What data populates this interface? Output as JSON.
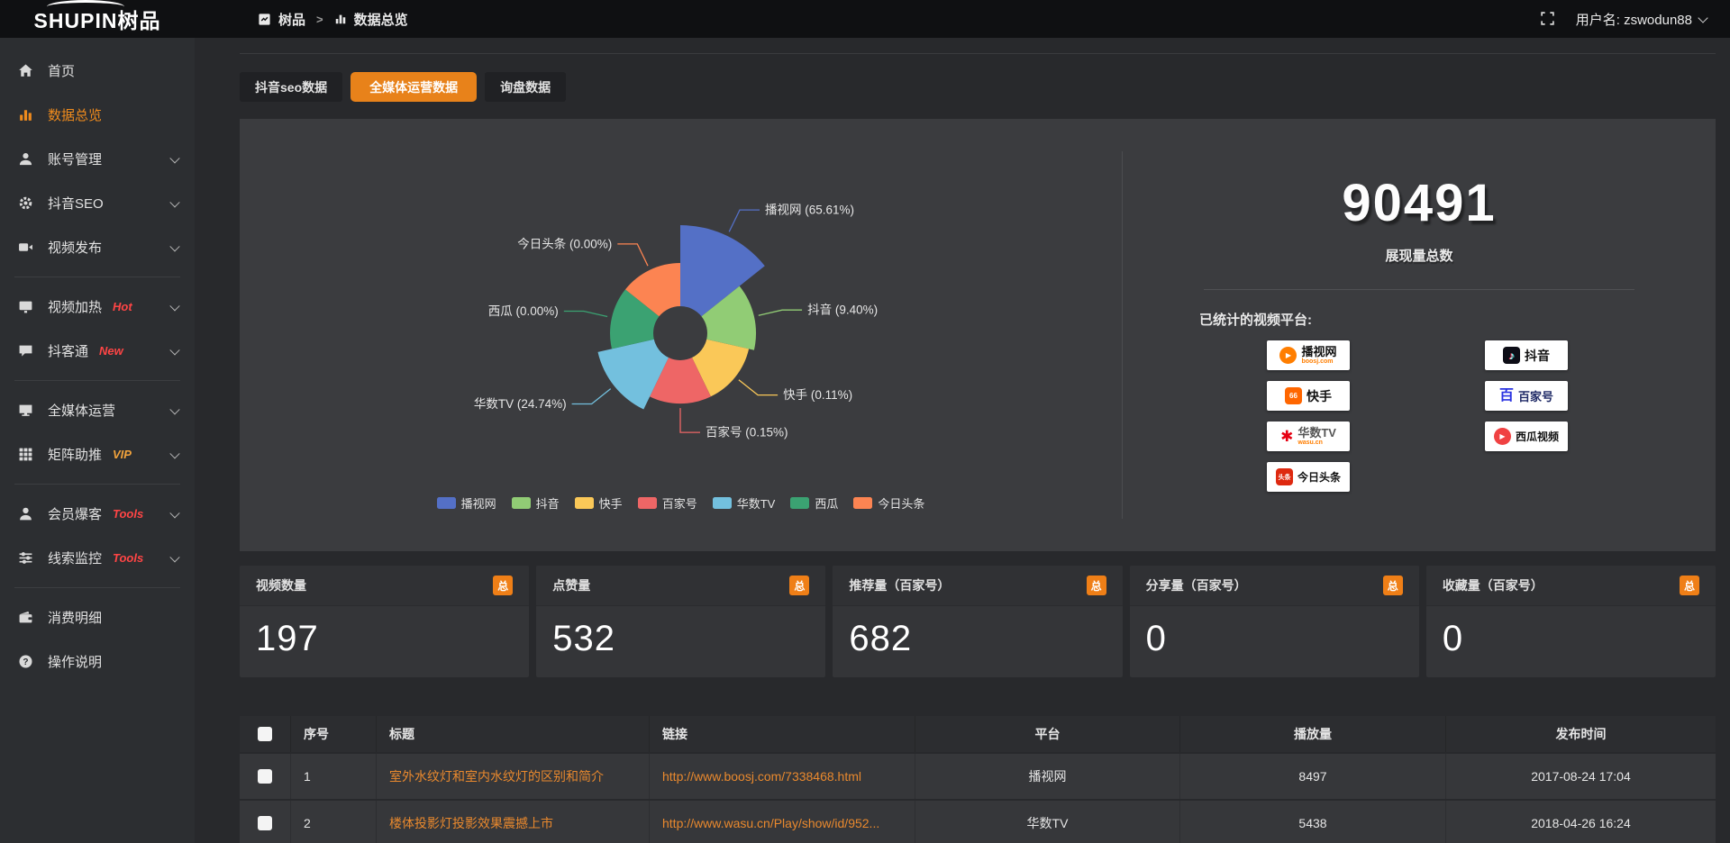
{
  "topbar": {
    "logo_text": "SHUPIN",
    "logo_suffix": "树品",
    "breadcrumb": {
      "root": "树品",
      "separator": ">",
      "current": "数据总览"
    },
    "username_label": "用户名: zswodun88"
  },
  "sidebar": {
    "items": [
      {
        "id": "home",
        "icon": "home-icon",
        "label": "首页"
      },
      {
        "id": "data-overview",
        "icon": "bar-chart-icon",
        "label": "数据总览",
        "active": true
      },
      {
        "id": "account-manage",
        "icon": "user-icon",
        "label": "账号管理",
        "chevron": true
      },
      {
        "id": "douyin-seo",
        "icon": "gear-icon",
        "label": "抖音SEO",
        "chevron": true
      },
      {
        "id": "video-publish",
        "icon": "video-icon",
        "label": "视频发布",
        "chevron": true
      },
      {
        "divider": true
      },
      {
        "id": "video-heat",
        "icon": "screen-icon",
        "label": "视频加热",
        "tag": "Hot",
        "tag_color": "#ff4545",
        "chevron": true
      },
      {
        "id": "douketong",
        "icon": "chat-icon",
        "label": "抖客通",
        "tag": "New",
        "tag_color": "#ff4545",
        "chevron": true
      },
      {
        "divider": true
      },
      {
        "id": "media-operation",
        "icon": "monitor-icon",
        "label": "全媒体运营",
        "chevron": true
      },
      {
        "id": "matrix-boost",
        "icon": "grid-icon",
        "label": "矩阵助推",
        "tag": "VIP",
        "tag_color": "#f2a33c",
        "chevron": true
      },
      {
        "divider": true
      },
      {
        "id": "member-baoke",
        "icon": "person-icon",
        "label": "会员爆客",
        "tag": "Tools",
        "tag_color": "#ff4545",
        "chevron": true
      },
      {
        "id": "clue-monitor",
        "icon": "sliders-icon",
        "label": "线索监控",
        "tag": "Tools",
        "tag_color": "#ff4545",
        "chevron": true
      },
      {
        "divider": true
      },
      {
        "id": "consumption-detail",
        "icon": "wallet-icon",
        "label": "消费明细"
      },
      {
        "id": "instructions",
        "icon": "help-icon",
        "label": "操作说明"
      }
    ]
  },
  "tabs": [
    {
      "label": "抖音seo数据",
      "active": false
    },
    {
      "label": "全媒体运营数据",
      "active": true
    },
    {
      "label": "询盘数据",
      "active": false
    }
  ],
  "chart_data": {
    "type": "pie",
    "style": "nightingale-rose",
    "items": [
      {
        "name": "播视网",
        "value": 65.61
      },
      {
        "name": "抖音",
        "value": 9.4
      },
      {
        "name": "快手",
        "value": 0.11
      },
      {
        "name": "百家号",
        "value": 0.15
      },
      {
        "name": "华数TV",
        "value": 24.74
      },
      {
        "name": "西瓜",
        "value": 0.0
      },
      {
        "name": "今日头条",
        "value": 0.0
      }
    ],
    "value_unit": "%",
    "label_format": "{name} ({value}%)",
    "legend": [
      "播视网",
      "抖音",
      "快手",
      "百家号",
      "华数TV",
      "西瓜",
      "今日头条"
    ],
    "colors": [
      "#5470c6",
      "#91cc75",
      "#fac858",
      "#ee6666",
      "#73c0de",
      "#3ba272",
      "#fc8452"
    ],
    "legend_position": "bottom"
  },
  "overview": {
    "total_value": "90491",
    "total_label": "展现量总数",
    "platforms_title": "已统计的视频平台:",
    "platform_columns": [
      [
        {
          "id": "boosj",
          "name": "播视网",
          "sub": "boosj.com"
        },
        {
          "id": "kuaishou",
          "name": "快手"
        },
        {
          "id": "wasu",
          "name": "华数TV",
          "sub": "wasu.cn"
        },
        {
          "id": "toutiao",
          "name": "今日头条"
        }
      ],
      [
        {
          "id": "douyin",
          "name": "抖音"
        },
        {
          "id": "baijiahao",
          "name": "百家号"
        },
        {
          "id": "xigua",
          "name": "西瓜视频"
        }
      ]
    ]
  },
  "stat_cards": [
    {
      "title": "视频数量",
      "badge": "总",
      "value": "197"
    },
    {
      "title": "点赞量",
      "badge": "总",
      "value": "532"
    },
    {
      "title": "推荐量（百家号）",
      "badge": "总",
      "value": "682"
    },
    {
      "title": "分享量（百家号）",
      "badge": "总",
      "value": "0"
    },
    {
      "title": "收藏量（百家号）",
      "badge": "总",
      "value": "0"
    }
  ],
  "table": {
    "headers": [
      "",
      "序号",
      "标题",
      "链接",
      "平台",
      "播放量",
      "发布时间"
    ],
    "rows": [
      {
        "index": "1",
        "title": "室外水纹灯和室内水纹灯的区别和简介",
        "link": "http://www.boosj.com/7338468.html",
        "platform": "播视网",
        "plays": "8497",
        "published": "2017-08-24 17:04"
      },
      {
        "index": "2",
        "title": "楼体投影灯投影效果震撼上市",
        "link": "http://www.wasu.cn/Play/show/id/952...",
        "platform": "华数TV",
        "plays": "5438",
        "published": "2018-04-26 16:24"
      }
    ]
  },
  "colors": {
    "accent": "#ef8b1d",
    "active_tab": "#e8821a",
    "link": "#e9892e",
    "badge": "#ef7f17"
  }
}
